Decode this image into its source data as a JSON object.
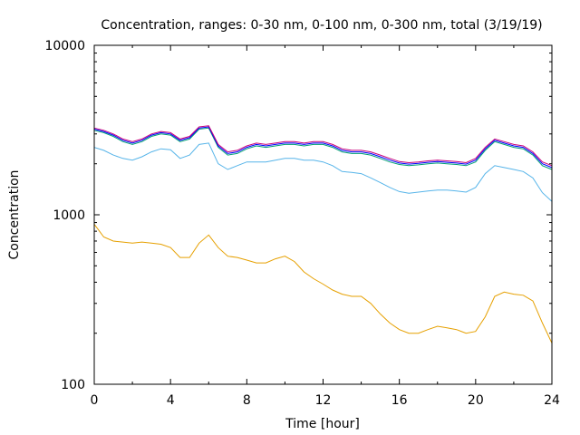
{
  "chart_data": {
    "type": "line",
    "title": "Concentration, ranges: 0-30 nm, 0-100 nm, 0-300 nm, total (3/19/19)",
    "xlabel": "Time [hour]",
    "ylabel": "Concentration",
    "xlim": [
      0,
      24
    ],
    "ylim": [
      100,
      10000
    ],
    "yscale": "log",
    "grid": false,
    "legend": "none",
    "x_ticks": [
      0,
      4,
      8,
      12,
      16,
      20,
      24
    ],
    "x_tick_labels": [
      "0",
      "4",
      "8",
      "12",
      "16",
      "20",
      "24"
    ],
    "y_ticks": [
      100,
      1000,
      10000
    ],
    "y_tick_labels": [
      "100",
      "1000",
      "10000"
    ],
    "x": [
      0,
      0.5,
      1,
      1.5,
      2,
      2.5,
      3,
      3.5,
      4,
      4.5,
      5,
      5.5,
      6,
      6.5,
      7,
      7.5,
      8,
      8.5,
      9,
      9.5,
      10,
      10.5,
      11,
      11.5,
      12,
      12.5,
      13,
      13.5,
      14,
      14.5,
      15,
      15.5,
      16,
      16.5,
      17,
      17.5,
      18,
      18.5,
      19,
      19.5,
      20,
      20.5,
      21,
      21.5,
      22,
      22.5,
      23,
      23.5,
      24
    ],
    "series": [
      {
        "color": "#e6a000",
        "values": [
          880,
          740,
          700,
          690,
          680,
          690,
          680,
          670,
          640,
          560,
          560,
          680,
          760,
          640,
          570,
          560,
          540,
          520,
          520,
          550,
          570,
          530,
          460,
          420,
          390,
          360,
          340,
          330,
          330,
          300,
          260,
          230,
          210,
          200,
          200,
          210,
          220,
          215,
          210,
          200,
          205,
          250,
          330,
          350,
          340,
          335,
          310,
          230,
          175
        ]
      },
      {
        "color": "#56b4e9",
        "values": [
          2500,
          2400,
          2250,
          2150,
          2100,
          2200,
          2350,
          2450,
          2420,
          2150,
          2250,
          2600,
          2650,
          2000,
          1850,
          1950,
          2050,
          2050,
          2050,
          2100,
          2150,
          2150,
          2100,
          2100,
          2050,
          1950,
          1800,
          1780,
          1750,
          1650,
          1550,
          1450,
          1370,
          1340,
          1360,
          1380,
          1400,
          1400,
          1380,
          1360,
          1450,
          1750,
          1950,
          1900,
          1850,
          1800,
          1650,
          1350,
          1200
        ]
      },
      {
        "color": "#009e73",
        "values": [
          3150,
          3050,
          2900,
          2700,
          2600,
          2700,
          2900,
          3000,
          2950,
          2700,
          2800,
          3200,
          3250,
          2500,
          2250,
          2300,
          2450,
          2550,
          2500,
          2550,
          2600,
          2600,
          2550,
          2600,
          2600,
          2500,
          2350,
          2300,
          2300,
          2250,
          2150,
          2050,
          1980,
          1950,
          1970,
          2000,
          2020,
          2000,
          1980,
          1950,
          2050,
          2400,
          2700,
          2600,
          2500,
          2450,
          2250,
          1950,
          1850
        ]
      },
      {
        "color": "#0000ff",
        "values": [
          3200,
          3100,
          2950,
          2750,
          2650,
          2750,
          2950,
          3050,
          3000,
          2750,
          2850,
          3250,
          3300,
          2550,
          2300,
          2350,
          2500,
          2600,
          2550,
          2600,
          2650,
          2650,
          2600,
          2650,
          2650,
          2550,
          2400,
          2350,
          2350,
          2300,
          2200,
          2100,
          2020,
          1990,
          2010,
          2040,
          2060,
          2040,
          2020,
          1990,
          2100,
          2450,
          2750,
          2650,
          2550,
          2500,
          2300,
          2000,
          1900
        ]
      },
      {
        "color": "#c8007a",
        "values": [
          3250,
          3150,
          3000,
          2800,
          2700,
          2800,
          3000,
          3100,
          3050,
          2800,
          2900,
          3300,
          3350,
          2600,
          2350,
          2400,
          2550,
          2650,
          2600,
          2650,
          2700,
          2700,
          2650,
          2700,
          2700,
          2600,
          2450,
          2400,
          2400,
          2350,
          2250,
          2150,
          2060,
          2030,
          2050,
          2080,
          2100,
          2080,
          2060,
          2030,
          2150,
          2500,
          2800,
          2700,
          2600,
          2550,
          2350,
          2050,
          1950
        ]
      }
    ]
  }
}
